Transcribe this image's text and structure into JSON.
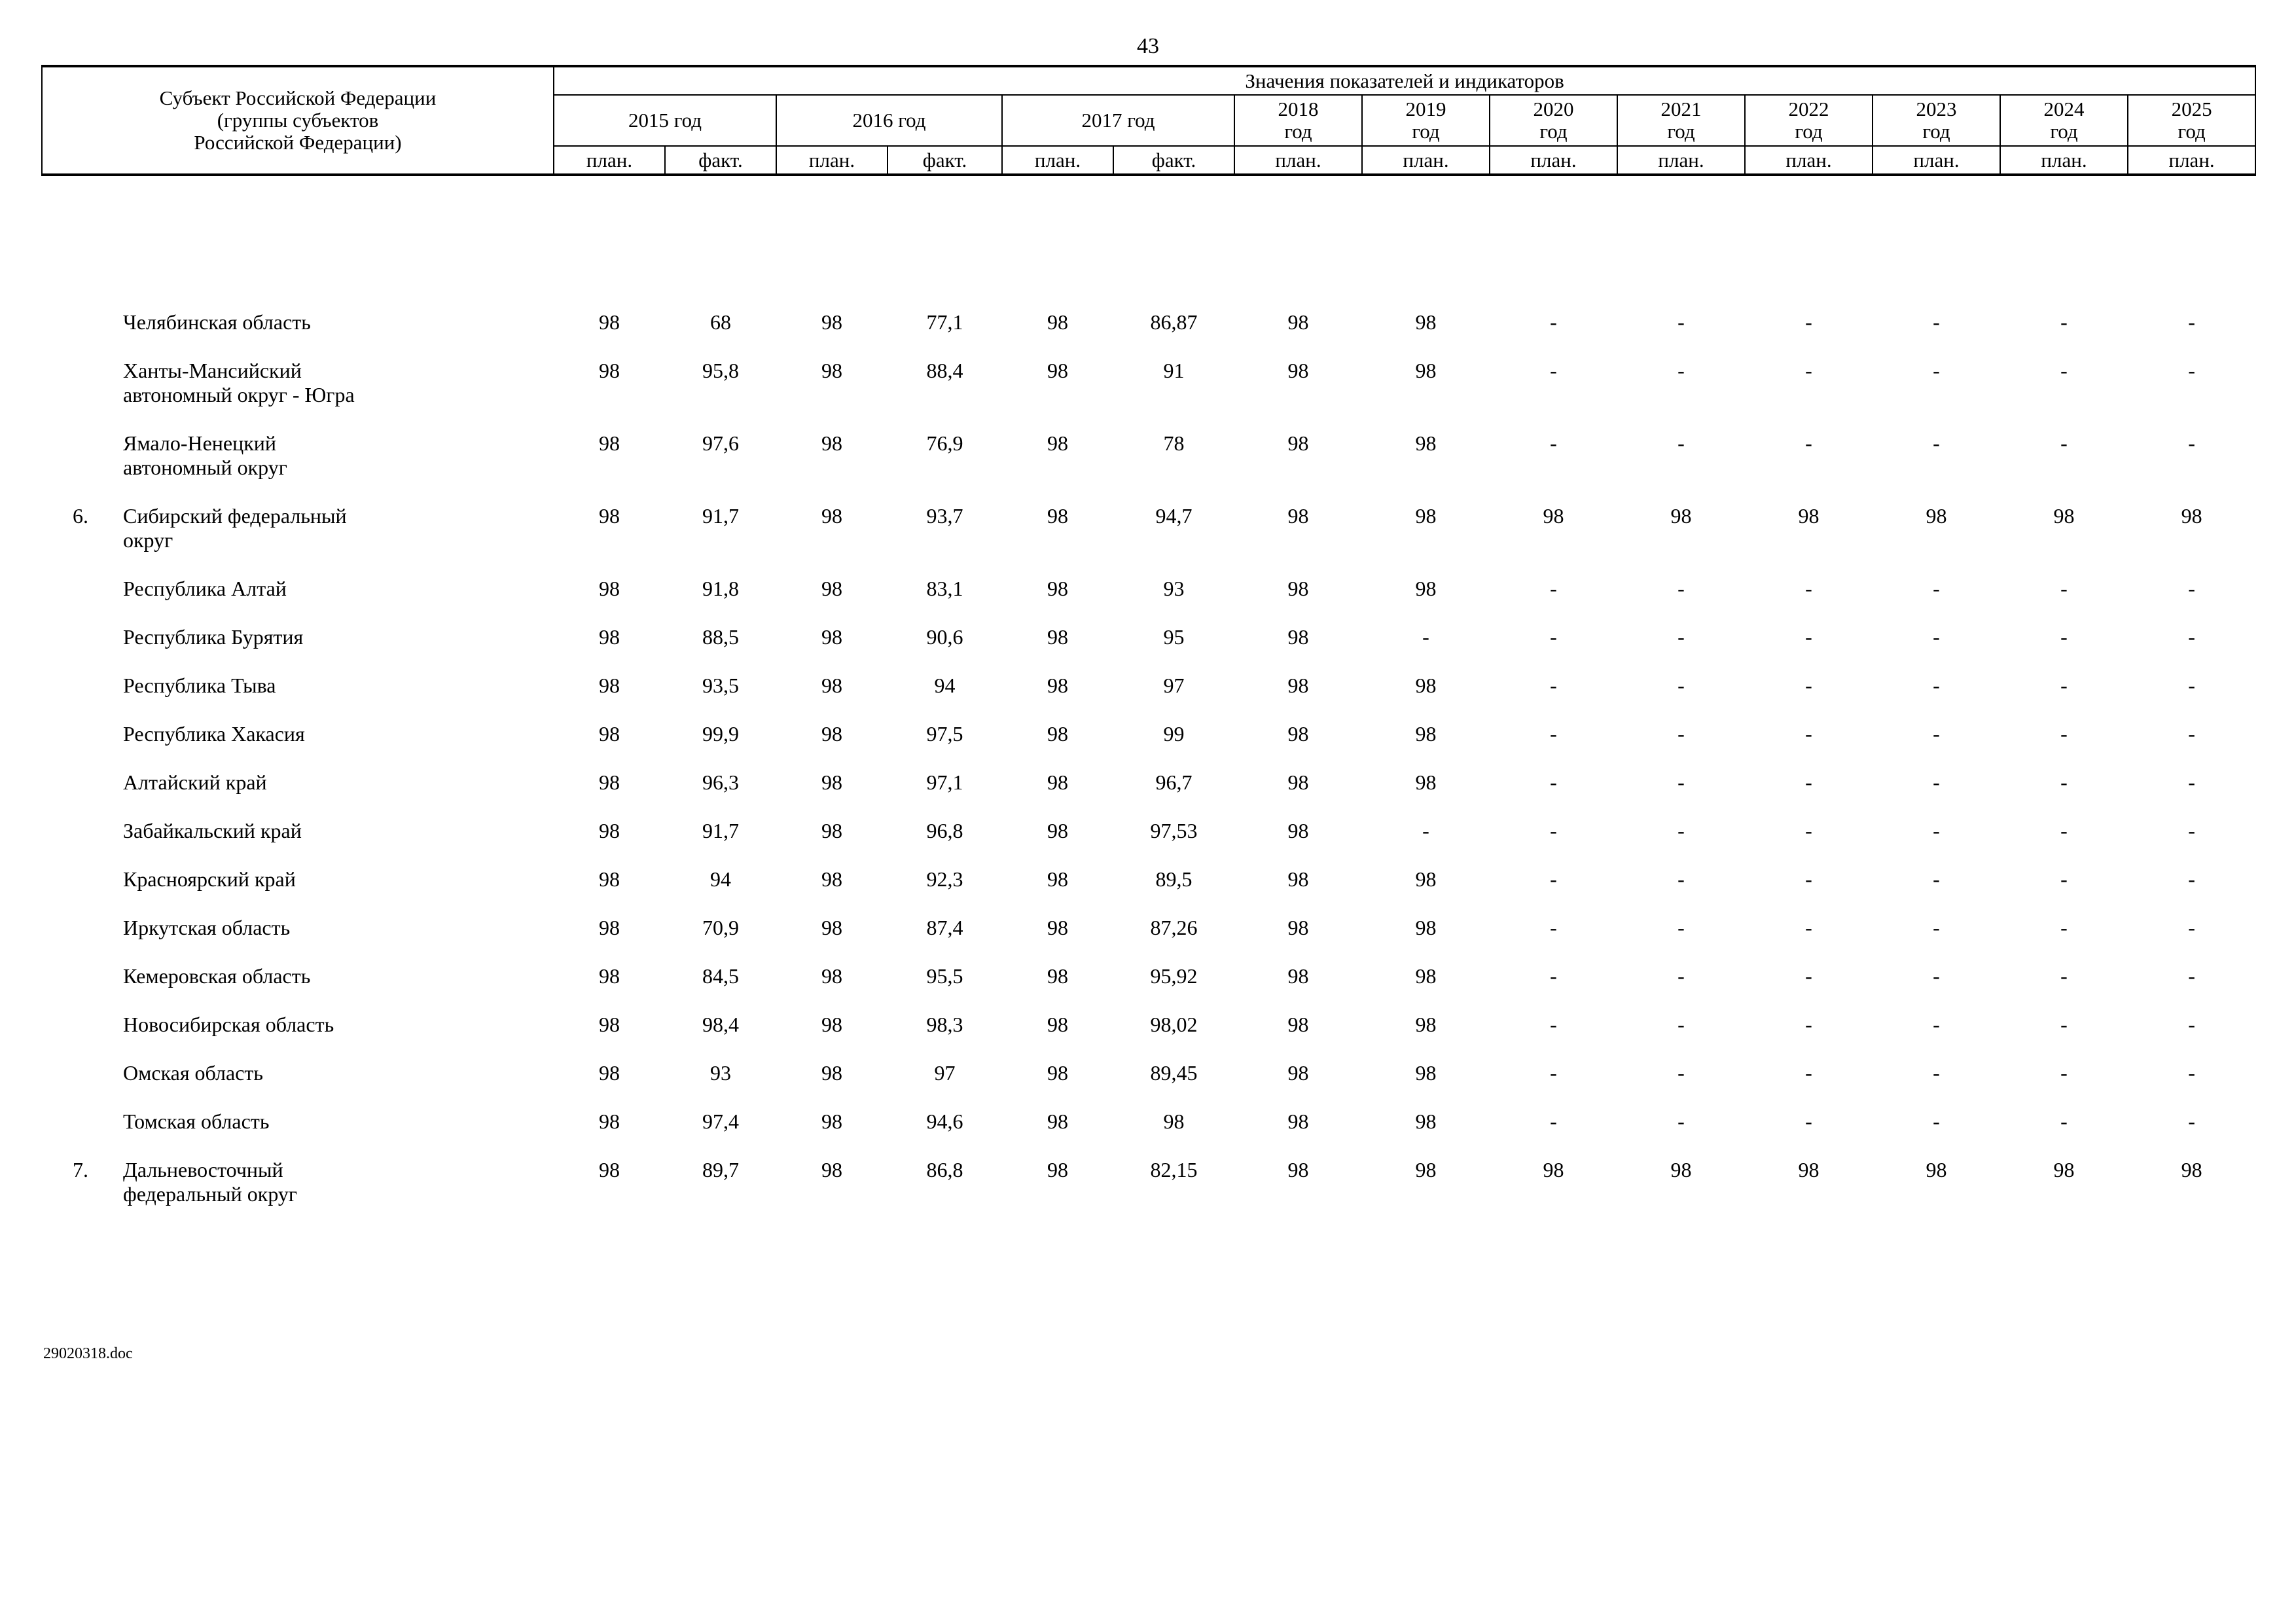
{
  "page": {
    "number": "43",
    "footer": "29020318.doc"
  },
  "table": {
    "subject_header": "Субъект Российской Федерации\n(группы субъектов\nРоссийской Федерации)",
    "values_header": "Значения показателей и индикаторов",
    "year_groups": [
      {
        "label_lines": [
          "2015 год"
        ],
        "sub": [
          "план.",
          "факт."
        ]
      },
      {
        "label_lines": [
          "2016 год"
        ],
        "sub": [
          "план.",
          "факт."
        ]
      },
      {
        "label_lines": [
          "2017 год"
        ],
        "sub": [
          "план.",
          "факт."
        ]
      },
      {
        "label_lines": [
          "2018",
          "год"
        ],
        "sub": [
          "план."
        ]
      },
      {
        "label_lines": [
          "2019",
          "год"
        ],
        "sub": [
          "план."
        ]
      },
      {
        "label_lines": [
          "2020",
          "год"
        ],
        "sub": [
          "план."
        ]
      },
      {
        "label_lines": [
          "2021",
          "год"
        ],
        "sub": [
          "план."
        ]
      },
      {
        "label_lines": [
          "2022",
          "год"
        ],
        "sub": [
          "план."
        ]
      },
      {
        "label_lines": [
          "2023",
          "год"
        ],
        "sub": [
          "план."
        ]
      },
      {
        "label_lines": [
          "2024",
          "год"
        ],
        "sub": [
          "план."
        ]
      },
      {
        "label_lines": [
          "2025",
          "год"
        ],
        "sub": [
          "план."
        ]
      }
    ],
    "rows": [
      {
        "num": "",
        "name": "Челябинская область",
        "values": [
          "98",
          "68",
          "98",
          "77,1",
          "98",
          "86,87",
          "98",
          "98",
          "-",
          "-",
          "-",
          "-",
          "-",
          "-"
        ]
      },
      {
        "num": "",
        "name": "Ханты-Мансийский\nавтономный округ - Югра",
        "values": [
          "98",
          "95,8",
          "98",
          "88,4",
          "98",
          "91",
          "98",
          "98",
          "-",
          "-",
          "-",
          "-",
          "-",
          "-"
        ]
      },
      {
        "num": "",
        "name": "Ямало-Ненецкий\nавтономный округ",
        "values": [
          "98",
          "97,6",
          "98",
          "76,9",
          "98",
          "78",
          "98",
          "98",
          "-",
          "-",
          "-",
          "-",
          "-",
          "-"
        ]
      },
      {
        "num": "6.",
        "name": "Сибирский федеральный\nокруг",
        "values": [
          "98",
          "91,7",
          "98",
          "93,7",
          "98",
          "94,7",
          "98",
          "98",
          "98",
          "98",
          "98",
          "98",
          "98",
          "98"
        ]
      },
      {
        "num": "",
        "name": "Республика Алтай",
        "values": [
          "98",
          "91,8",
          "98",
          "83,1",
          "98",
          "93",
          "98",
          "98",
          "-",
          "-",
          "-",
          "-",
          "-",
          "-"
        ]
      },
      {
        "num": "",
        "name": "Республика Бурятия",
        "values": [
          "98",
          "88,5",
          "98",
          "90,6",
          "98",
          "95",
          "98",
          "-",
          "-",
          "-",
          "-",
          "-",
          "-",
          "-"
        ]
      },
      {
        "num": "",
        "name": "Республика Тыва",
        "values": [
          "98",
          "93,5",
          "98",
          "94",
          "98",
          "97",
          "98",
          "98",
          "-",
          "-",
          "-",
          "-",
          "-",
          "-"
        ]
      },
      {
        "num": "",
        "name": "Республика Хакасия",
        "values": [
          "98",
          "99,9",
          "98",
          "97,5",
          "98",
          "99",
          "98",
          "98",
          "-",
          "-",
          "-",
          "-",
          "-",
          "-"
        ]
      },
      {
        "num": "",
        "name": "Алтайский край",
        "values": [
          "98",
          "96,3",
          "98",
          "97,1",
          "98",
          "96,7",
          "98",
          "98",
          "-",
          "-",
          "-",
          "-",
          "-",
          "-"
        ]
      },
      {
        "num": "",
        "name": "Забайкальский край",
        "values": [
          "98",
          "91,7",
          "98",
          "96,8",
          "98",
          "97,53",
          "98",
          "-",
          "-",
          "-",
          "-",
          "-",
          "-",
          "-"
        ]
      },
      {
        "num": "",
        "name": "Красноярский край",
        "values": [
          "98",
          "94",
          "98",
          "92,3",
          "98",
          "89,5",
          "98",
          "98",
          "-",
          "-",
          "-",
          "-",
          "-",
          "-"
        ]
      },
      {
        "num": "",
        "name": "Иркутская область",
        "values": [
          "98",
          "70,9",
          "98",
          "87,4",
          "98",
          "87,26",
          "98",
          "98",
          "-",
          "-",
          "-",
          "-",
          "-",
          "-"
        ]
      },
      {
        "num": "",
        "name": "Кемеровская область",
        "values": [
          "98",
          "84,5",
          "98",
          "95,5",
          "98",
          "95,92",
          "98",
          "98",
          "-",
          "-",
          "-",
          "-",
          "-",
          "-"
        ]
      },
      {
        "num": "",
        "name": "Новосибирская область",
        "values": [
          "98",
          "98,4",
          "98",
          "98,3",
          "98",
          "98,02",
          "98",
          "98",
          "-",
          "-",
          "-",
          "-",
          "-",
          "-"
        ]
      },
      {
        "num": "",
        "name": "Омская область",
        "values": [
          "98",
          "93",
          "98",
          "97",
          "98",
          "89,45",
          "98",
          "98",
          "-",
          "-",
          "-",
          "-",
          "-",
          "-"
        ]
      },
      {
        "num": "",
        "name": "Томская область",
        "values": [
          "98",
          "97,4",
          "98",
          "94,6",
          "98",
          "98",
          "98",
          "98",
          "-",
          "-",
          "-",
          "-",
          "-",
          "-"
        ]
      },
      {
        "num": "7.",
        "name": "Дальневосточный\nфедеральный округ",
        "values": [
          "98",
          "89,7",
          "98",
          "86,8",
          "98",
          "82,15",
          "98",
          "98",
          "98",
          "98",
          "98",
          "98",
          "98",
          "98"
        ]
      }
    ]
  }
}
